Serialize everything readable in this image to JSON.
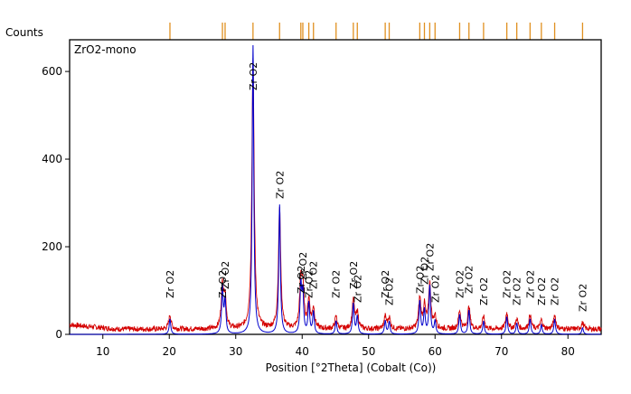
{
  "colors": {
    "background": "#ffffff",
    "axis": "#000000",
    "observed_line": "#d40000",
    "calculated_line": "#0000cc",
    "reference_ticks": "#e09020",
    "label_text": "#000000"
  },
  "chart_data": {
    "type": "line",
    "ylabel": "Counts",
    "xlabel": "Position [°2Theta] (Cobalt (Co))",
    "phase_label": "ZrO2-mono",
    "xlim": [
      5,
      85
    ],
    "ylim": [
      0,
      660
    ],
    "x_ticks": [
      10,
      20,
      30,
      40,
      50,
      60,
      70,
      80
    ],
    "x_tick_labels": [
      "10",
      "20",
      "30",
      "40",
      "50",
      "60",
      "70",
      "80"
    ],
    "y_ticks": [
      0,
      200,
      400,
      600
    ],
    "y_tick_labels": [
      "0",
      "200",
      "400",
      "600"
    ],
    "baseline_observed": 12,
    "reference_ticks": [
      20.1,
      28.0,
      28.4,
      32.6,
      36.6,
      39.8,
      40.1,
      41.0,
      41.7,
      45.1,
      47.7,
      48.3,
      52.5,
      53.1,
      57.7,
      58.4,
      59.2,
      60.0,
      63.7,
      65.1,
      67.3,
      70.8,
      72.3,
      74.3,
      76.0,
      78.0,
      82.2
    ],
    "peaks": [
      {
        "x": 20.1,
        "y": 35,
        "label": "Zr O2"
      },
      {
        "x": 28.0,
        "y": 105,
        "label": "Zr O2"
      },
      {
        "x": 28.4,
        "y": 75,
        "label": "Zr O2"
      },
      {
        "x": 32.6,
        "y": 660,
        "label": "Zr O2"
      },
      {
        "x": 36.6,
        "y": 295,
        "label": "Zr O2"
      },
      {
        "x": 39.8,
        "y": 110,
        "label": "Zr O2"
      },
      {
        "x": 40.1,
        "y": 90,
        "label": "Zr O2"
      },
      {
        "x": 41.0,
        "y": 70,
        "label": "Zr O2"
      },
      {
        "x": 41.7,
        "y": 50,
        "label": "Zr O2"
      },
      {
        "x": 45.1,
        "y": 30,
        "label": "Zr O2"
      },
      {
        "x": 47.7,
        "y": 70,
        "label": "Zr O2"
      },
      {
        "x": 48.3,
        "y": 40,
        "label": "Zr O2"
      },
      {
        "x": 52.5,
        "y": 30,
        "label": "Zr O2"
      },
      {
        "x": 53.1,
        "y": 28,
        "label": "Zr O2"
      },
      {
        "x": 57.7,
        "y": 75,
        "label": "Zr O2"
      },
      {
        "x": 58.4,
        "y": 55,
        "label": "Zr O2"
      },
      {
        "x": 59.2,
        "y": 110,
        "label": "Zr O2"
      },
      {
        "x": 60.0,
        "y": 30,
        "label": "Zr O2"
      },
      {
        "x": 63.7,
        "y": 45,
        "label": "Zr O2"
      },
      {
        "x": 65.1,
        "y": 55,
        "label": "Zr O2"
      },
      {
        "x": 67.3,
        "y": 30,
        "label": "Zr O2"
      },
      {
        "x": 70.8,
        "y": 40,
        "label": "Zr O2"
      },
      {
        "x": 72.3,
        "y": 25,
        "label": "Zr O2"
      },
      {
        "x": 74.3,
        "y": 35,
        "label": "Zr O2"
      },
      {
        "x": 76.0,
        "y": 22,
        "label": "Zr O2"
      },
      {
        "x": 78.0,
        "y": 35,
        "label": "Zr O2"
      },
      {
        "x": 82.2,
        "y": 15,
        "label": "Zr O2"
      }
    ],
    "label_rows": [
      330,
      330,
      320,
      100,
      220,
      325,
      310,
      330,
      320,
      330,
      320,
      335,
      330,
      338,
      325,
      315,
      300,
      335,
      330,
      325,
      338,
      330,
      338,
      330,
      338,
      338,
      345
    ],
    "grid": false
  }
}
